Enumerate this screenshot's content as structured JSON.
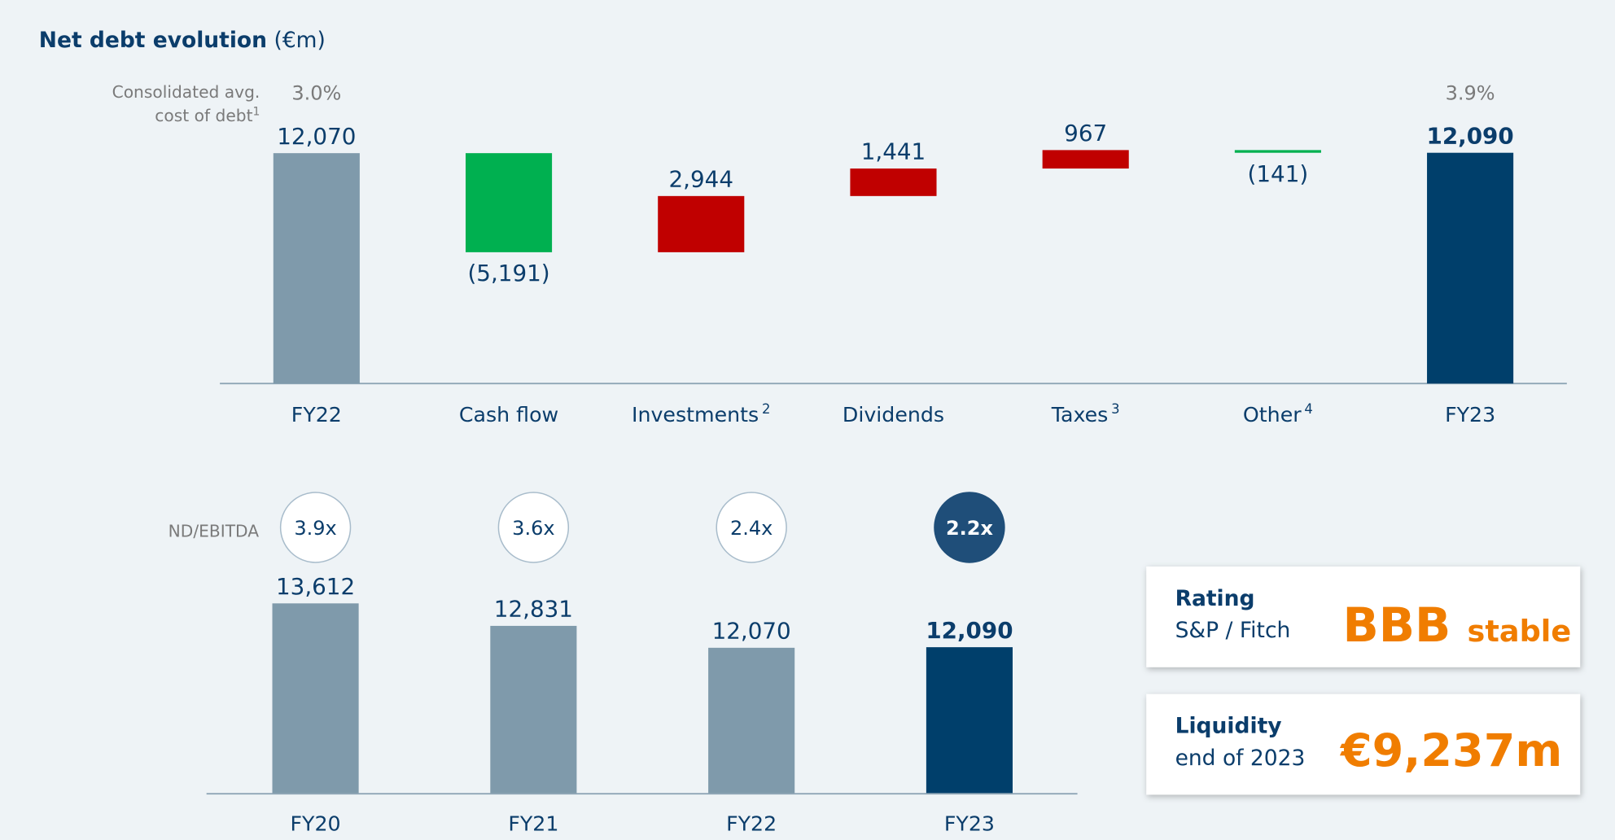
{
  "title": "Net debt evolution",
  "title_unit": "(€m)",
  "chart_data": [
    {
      "type": "waterfall",
      "categories": [
        "FY22",
        "Cash flow",
        "Investments",
        "Dividends",
        "Taxes",
        "Other",
        "FY23"
      ],
      "category_notes": [
        null,
        null,
        "2",
        null,
        "3",
        "4",
        null
      ],
      "values": [
        12070,
        -5191,
        2944,
        1441,
        967,
        -141,
        12090
      ],
      "value_labels": [
        "12,070",
        "(5,191)",
        "2,944",
        "1,441",
        "967",
        "(141)",
        "12,090"
      ],
      "measure": [
        "absolute",
        "relative",
        "relative",
        "relative",
        "relative",
        "relative",
        "total"
      ],
      "colors": [
        "#7f9aab",
        "#00b050",
        "#c00000",
        "#c00000",
        "#c00000",
        "#00b050",
        "#003f6b"
      ],
      "ylim": [
        0,
        13000
      ],
      "cost_of_debt": {
        "label": [
          "Consolidated avg.",
          "cost of debt"
        ],
        "note": "1",
        "values": [
          3.0,
          null,
          null,
          null,
          null,
          null,
          3.9
        ],
        "value_labels": [
          "3.0%",
          null,
          null,
          null,
          null,
          null,
          "3.9%"
        ]
      }
    },
    {
      "type": "bar",
      "categories": [
        "FY20",
        "FY21",
        "FY22",
        "FY23"
      ],
      "values": [
        13612,
        12831,
        12070,
        12090
      ],
      "value_labels": [
        "13,612",
        "12,831",
        "12,070",
        "12,090"
      ],
      "colors": [
        "#7f9aab",
        "#7f9aab",
        "#7f9aab",
        "#003f6b"
      ],
      "ylim": [
        7000,
        14000
      ],
      "ratio_label": "ND/EBITDA",
      "ratio_values": [
        3.9,
        3.6,
        2.4,
        2.2
      ],
      "ratio_labels": [
        "3.9x",
        "3.6x",
        "2.4x",
        "2.2x"
      ]
    }
  ],
  "cards": [
    {
      "title": "Rating",
      "subtitle": "S&P / Fitch",
      "value": "BBB",
      "qualifier": "stable"
    },
    {
      "title": "Liquidity",
      "subtitle": "end of 2023",
      "value": "€9,237m"
    }
  ]
}
